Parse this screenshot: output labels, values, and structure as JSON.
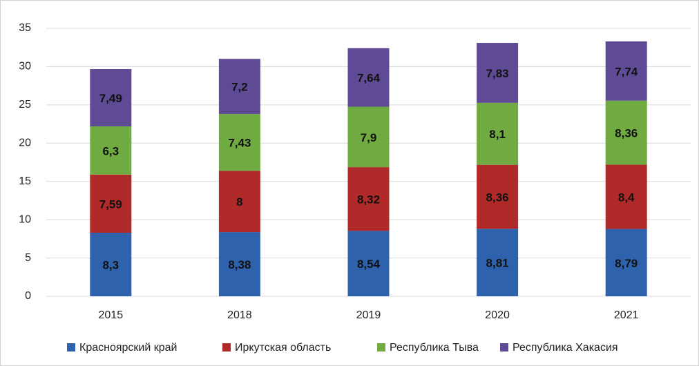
{
  "chart_data": {
    "type": "stacked_bar",
    "categories": [
      "2015",
      "2018",
      "2019",
      "2020",
      "2021"
    ],
    "series": [
      {
        "name": "Красноярский край",
        "color": "#2e62ad",
        "values": [
          8.3,
          8.38,
          8.54,
          8.81,
          8.79
        ],
        "value_labels": [
          "8,3",
          "8,38",
          "8,54",
          "8,81",
          "8,79"
        ]
      },
      {
        "name": "Иркутская область",
        "color": "#b02a2a",
        "values": [
          7.59,
          8,
          8.32,
          8.36,
          8.4
        ],
        "value_labels": [
          "7,59",
          "8",
          "8,32",
          "8,36",
          "8,4"
        ]
      },
      {
        "name": "Республика Тыва",
        "color": "#70ab42",
        "values": [
          6.3,
          7.43,
          7.9,
          8.1,
          8.36
        ],
        "value_labels": [
          "6,3",
          "7,43",
          "7,9",
          "8,1",
          "8,36"
        ]
      },
      {
        "name": "Республика Хакасия",
        "color": "#5f4a95",
        "values": [
          7.49,
          7.2,
          7.64,
          7.83,
          7.74
        ],
        "value_labels": [
          "7,49",
          "7,2",
          "7,64",
          "7,83",
          "7,74"
        ]
      }
    ],
    "ylim": [
      0,
      35
    ],
    "yticks": [
      0,
      5,
      10,
      15,
      20,
      25,
      30,
      35
    ],
    "grid": true,
    "legend": "bottom"
  }
}
